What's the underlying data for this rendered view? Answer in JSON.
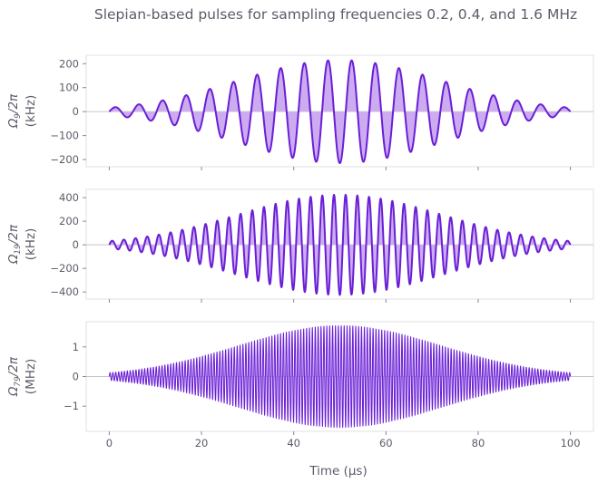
{
  "title": "Slepian-based pulses for sampling frequencies 0.2, 0.4, and 1.6 MHz",
  "colors": {
    "line": "#6a1fd6",
    "fill": "#caa6f0",
    "zero_line": "#c8c4d0",
    "axes_frame": "#e2e2e6",
    "text": "#5e5a68"
  },
  "chart_data": [
    {
      "type": "area",
      "ylabel_main": "Ω",
      "ylabel_sub": "9",
      "ylabel_tail": "/2π",
      "ylabel_unit": "(kHz)",
      "xlim": [
        -5,
        105
      ],
      "ylim": [
        -230,
        235
      ],
      "yticks": [
        200,
        100,
        0,
        -100,
        -200
      ],
      "ytick_labels": [
        "200",
        "100",
        "0",
        "−100",
        "−200"
      ],
      "x_start": 0,
      "x_end": 100,
      "oscillation_cycles": 19.5,
      "peak_amplitude": 215,
      "envelope_width": 0.22,
      "x_tick_labels_visible": false
    },
    {
      "type": "area",
      "ylabel_main": "Ω",
      "ylabel_sub": "19",
      "ylabel_tail": "/2π",
      "ylabel_unit": "(kHz)",
      "xlim": [
        -5,
        105
      ],
      "ylim": [
        -460,
        470
      ],
      "yticks": [
        400,
        200,
        0,
        -200,
        -400
      ],
      "ytick_labels": [
        "400",
        "200",
        "0",
        "−200",
        "−400"
      ],
      "x_start": 0,
      "x_end": 100,
      "oscillation_cycles": 39.5,
      "peak_amplitude": 425,
      "envelope_width": 0.22,
      "x_tick_labels_visible": false
    },
    {
      "type": "area",
      "ylabel_main": "Ω",
      "ylabel_sub": "79",
      "ylabel_tail": "/2π",
      "ylabel_unit": "(MHz)",
      "xlim": [
        -5,
        105
      ],
      "ylim": [
        -1.85,
        1.85
      ],
      "yticks": [
        1,
        0,
        -1
      ],
      "ytick_labels": [
        "1",
        "0",
        "−1"
      ],
      "x_start": 0,
      "x_end": 100,
      "oscillation_cycles": 159.5,
      "peak_amplitude": 1.72,
      "envelope_width": 0.22,
      "x_tick_labels_visible": true
    }
  ],
  "xaxis": {
    "label": "Time (μs)",
    "ticks": [
      0,
      20,
      40,
      60,
      80,
      100
    ],
    "tick_labels": [
      "0",
      "20",
      "40",
      "60",
      "80",
      "100"
    ]
  }
}
